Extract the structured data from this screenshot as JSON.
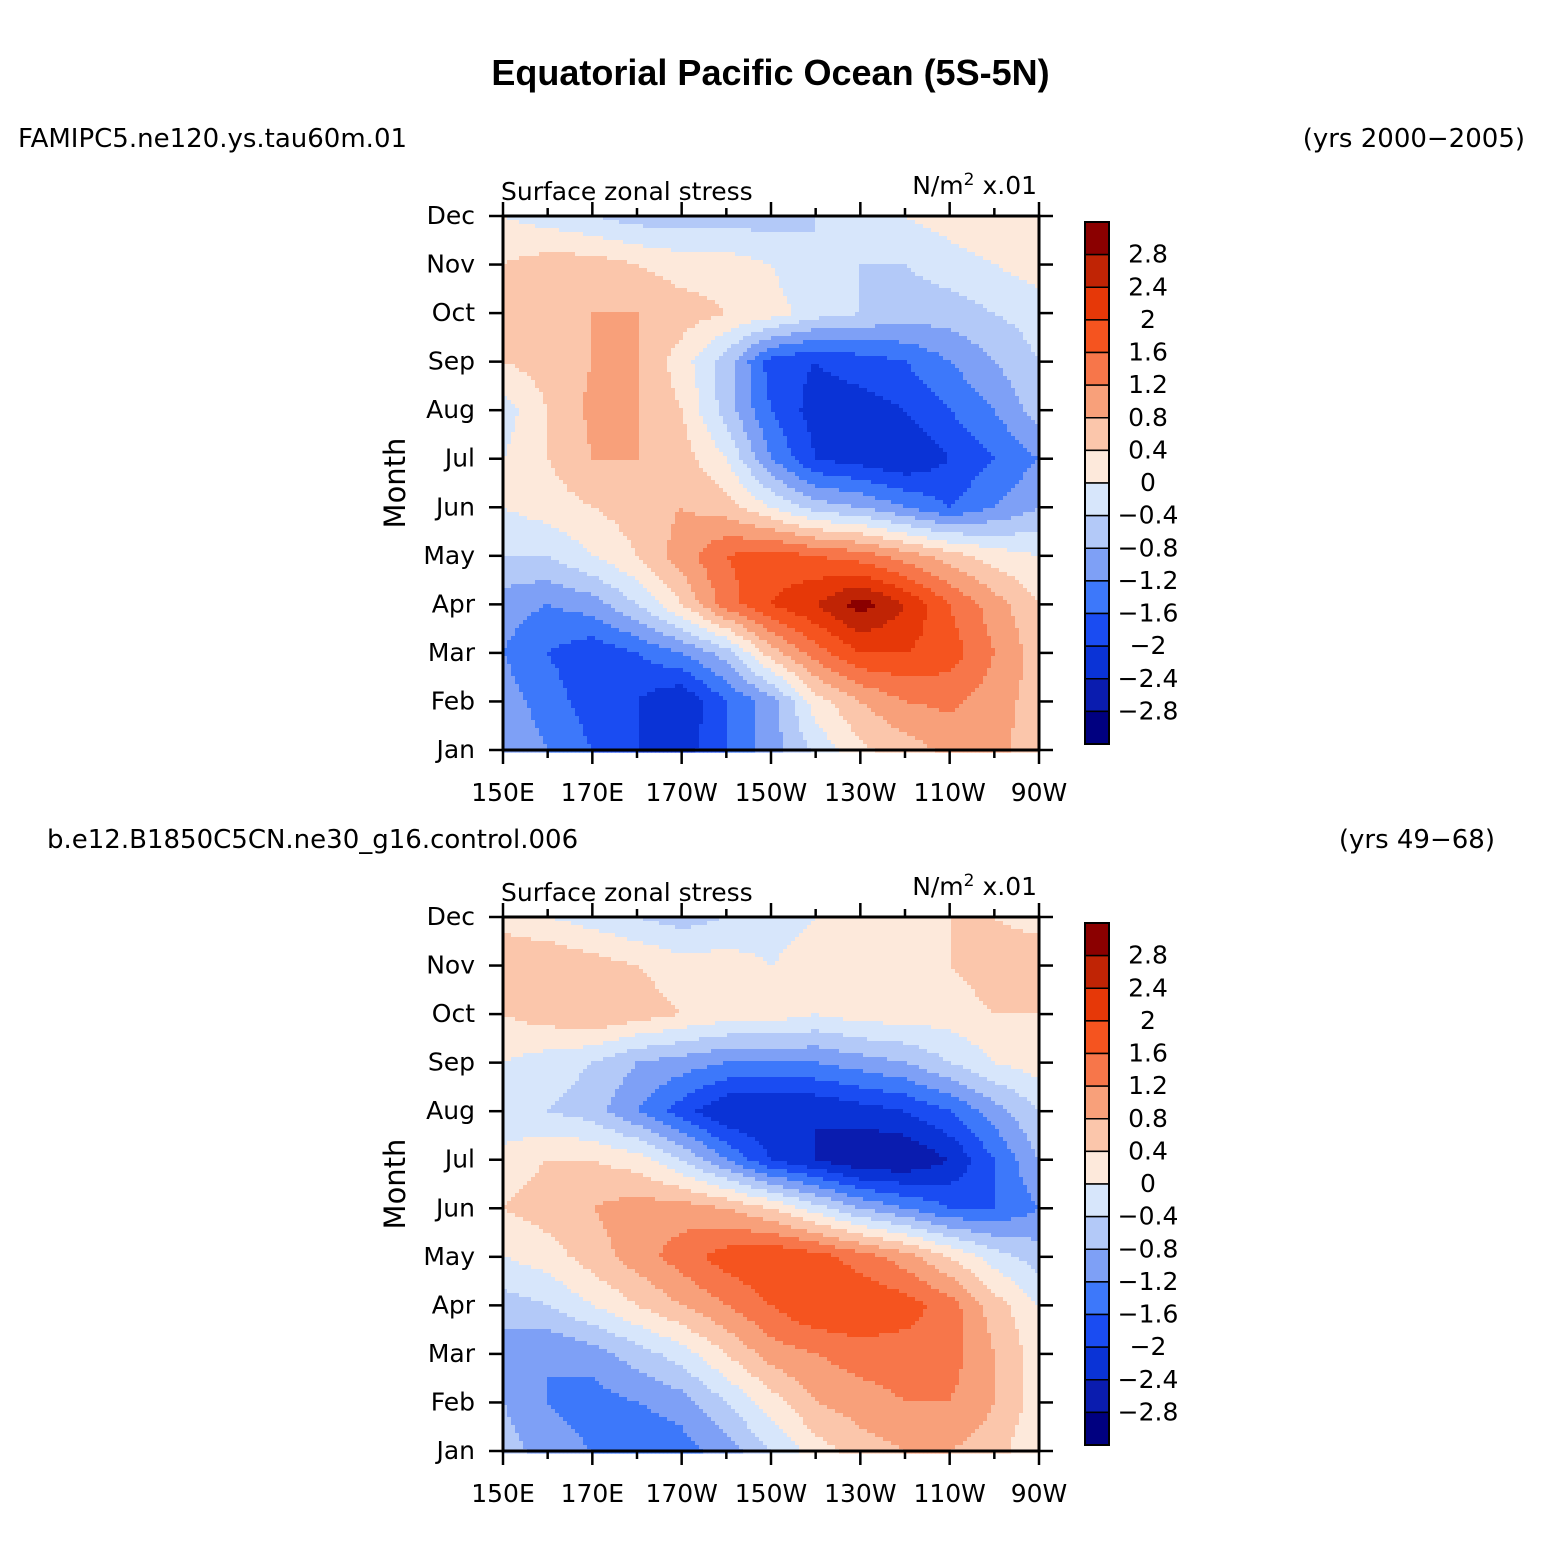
{
  "title": "Equatorial Pacific Ocean (5S-5N)",
  "panels": [
    {
      "case": "FAMIPC5.ne120.ys.tau60m.01",
      "years": "(yrs 2000−2005)",
      "left_label": "Surface zonal stress",
      "units_main": "N/m",
      "units_sup": "2",
      "units_scale": "x.01"
    },
    {
      "case": "b.e12.B1850C5CN.ne30_g16.control.006",
      "years": "(yrs 49−68)",
      "left_label": "Surface zonal stress",
      "units_main": "N/m",
      "units_sup": "2",
      "units_scale": "x.01"
    }
  ],
  "colors": {
    "c_m3.2": "#000080",
    "c_m2.8": "#0a1caf",
    "c_m2.4": "#0a33d6",
    "c_m2.0": "#1a4cf2",
    "c_m1.6": "#3d78fa",
    "c_m1.2": "#7ea0f6",
    "c_m0.8": "#b3c9f8",
    "c_m0.4": "#d7e6fb",
    "c_p0.0": "#fde9db",
    "c_p0.4": "#fbc6ab",
    "c_p0.8": "#f8a07a",
    "c_p1.2": "#f7764a",
    "c_p1.6": "#f5541f",
    "c_p2.0": "#e63808",
    "c_p2.4": "#c02405",
    "c_p2.8": "#8b0000"
  },
  "chart_data": [
    {
      "type": "heatmap",
      "plot_type": "filled-contour",
      "title": "Surface zonal stress",
      "units": "N/m² x.01",
      "xlabel": "",
      "ylabel": "Month",
      "x_tick_labels": [
        "150E",
        "170E",
        "170W",
        "150W",
        "130W",
        "110W",
        "90W"
      ],
      "x_lon_east": [
        150,
        170,
        190,
        210,
        230,
        250,
        270
      ],
      "xlim": [
        150,
        270
      ],
      "y_tick_labels": [
        "Jan",
        "Feb",
        "Mar",
        "Apr",
        "May",
        "Jun",
        "Jul",
        "Aug",
        "Sep",
        "Oct",
        "Nov",
        "Dec"
      ],
      "colorbar_labels": [
        "2.8",
        "2.4",
        "2",
        "1.6",
        "1.2",
        "0.8",
        "0.4",
        "0",
        "−0.4",
        "−0.8",
        "−1.2",
        "−1.6",
        "−2",
        "−2.4",
        "−2.8"
      ],
      "contour_levels": [
        -2.8,
        -2.4,
        -2.0,
        -1.6,
        -1.2,
        -0.8,
        -0.4,
        0,
        0.4,
        0.8,
        1.2,
        1.6,
        2.0,
        2.4,
        2.8
      ],
      "grid": {
        "lon_east": [
          150,
          160,
          170,
          180,
          190,
          200,
          210,
          220,
          230,
          240,
          250,
          260,
          270
        ],
        "month": [
          1,
          2,
          3,
          4,
          5,
          6,
          7,
          8,
          9,
          10,
          11,
          12
        ],
        "values": [
          [
            -0.8,
            -1.2,
            -1.6,
            -2.0,
            -2.2,
            -1.6,
            -1.0,
            -0.3,
            0.3,
            0.6,
            0.9,
            0.9,
            0.6
          ],
          [
            -1.0,
            -1.4,
            -1.8,
            -2.0,
            -2.4,
            -1.6,
            -1.0,
            0.2,
            0.8,
            1.2,
            1.3,
            1.0,
            0.6
          ],
          [
            -1.2,
            -1.6,
            -1.9,
            -1.6,
            -1.2,
            -0.6,
            0.6,
            1.4,
            2.0,
            2.0,
            1.8,
            1.2,
            0.6
          ],
          [
            -1.0,
            -1.2,
            -1.0,
            -0.4,
            0.4,
            1.4,
            2.0,
            2.4,
            3.0,
            2.4,
            1.6,
            1.0,
            0.4
          ],
          [
            -0.4,
            -0.4,
            0.0,
            0.4,
            1.0,
            1.6,
            1.8,
            1.6,
            1.4,
            1.0,
            0.6,
            0.2,
            0.0
          ],
          [
            0.0,
            0.2,
            0.4,
            0.6,
            0.8,
            0.6,
            0.0,
            -0.6,
            -0.8,
            -1.2,
            -1.6,
            -1.2,
            -0.8
          ],
          [
            0.0,
            0.4,
            0.8,
            0.8,
            0.6,
            0.0,
            -1.2,
            -2.0,
            -2.2,
            -2.4,
            -2.0,
            -1.6,
            -1.2
          ],
          [
            -0.2,
            0.4,
            0.9,
            0.8,
            0.4,
            -0.6,
            -1.6,
            -2.2,
            -2.2,
            -2.0,
            -1.6,
            -1.2,
            -0.6
          ],
          [
            0.4,
            0.6,
            0.8,
            0.8,
            0.2,
            -0.6,
            -1.8,
            -2.0,
            -1.8,
            -1.6,
            -1.2,
            -0.8,
            -0.4
          ],
          [
            0.4,
            0.6,
            0.8,
            0.8,
            0.6,
            0.4,
            0.2,
            -0.2,
            -0.4,
            -0.6,
            -0.6,
            -0.4,
            -0.2
          ],
          [
            0.4,
            0.6,
            0.6,
            0.4,
            0.2,
            0.2,
            0.0,
            -0.4,
            -0.4,
            -0.4,
            -0.2,
            0.0,
            0.2
          ],
          [
            0.0,
            -0.2,
            -0.4,
            -0.6,
            -0.6,
            -0.6,
            -0.6,
            -0.4,
            -0.2,
            0.0,
            0.2,
            0.4,
            0.4
          ]
        ]
      }
    },
    {
      "type": "heatmap",
      "plot_type": "filled-contour",
      "title": "Surface zonal stress",
      "units": "N/m² x.01",
      "xlabel": "",
      "ylabel": "Month",
      "x_tick_labels": [
        "150E",
        "170E",
        "170W",
        "150W",
        "130W",
        "110W",
        "90W"
      ],
      "x_lon_east": [
        150,
        170,
        190,
        210,
        230,
        250,
        270
      ],
      "xlim": [
        150,
        270
      ],
      "y_tick_labels": [
        "Jan",
        "Feb",
        "Mar",
        "Apr",
        "May",
        "Jun",
        "Jul",
        "Aug",
        "Sep",
        "Oct",
        "Nov",
        "Dec"
      ],
      "colorbar_labels": [
        "2.8",
        "2.4",
        "2",
        "1.6",
        "1.2",
        "0.8",
        "0.4",
        "0",
        "−0.4",
        "−0.8",
        "−1.2",
        "−1.6",
        "−2",
        "−2.4",
        "−2.8"
      ],
      "contour_levels": [
        -2.8,
        -2.4,
        -2.0,
        -1.6,
        -1.2,
        -0.8,
        -0.4,
        0,
        0.4,
        0.8,
        1.2,
        1.6,
        2.0,
        2.4,
        2.8
      ],
      "grid": {
        "lon_east": [
          150,
          160,
          170,
          180,
          190,
          200,
          210,
          220,
          230,
          240,
          250,
          260,
          270
        ],
        "month": [
          1,
          2,
          3,
          4,
          5,
          6,
          7,
          8,
          9,
          10,
          11,
          12
        ],
        "values": [
          [
            -0.6,
            -1.0,
            -1.2,
            -1.6,
            -1.4,
            -1.0,
            -0.4,
            0.2,
            0.6,
            0.8,
            0.8,
            0.6,
            0.0
          ],
          [
            -0.8,
            -1.2,
            -1.4,
            -1.2,
            -1.0,
            -0.4,
            0.2,
            0.8,
            1.0,
            1.2,
            1.2,
            0.8,
            0.2
          ],
          [
            -1.0,
            -1.2,
            -1.0,
            -0.6,
            -0.2,
            0.4,
            1.0,
            1.2,
            1.4,
            1.4,
            1.4,
            0.8,
            0.2
          ],
          [
            -0.6,
            -0.4,
            0.0,
            0.4,
            0.8,
            1.2,
            1.6,
            2.0,
            2.0,
            1.8,
            1.4,
            0.6,
            0.0
          ],
          [
            0.0,
            0.2,
            0.6,
            1.0,
            1.4,
            1.8,
            2.0,
            1.8,
            1.4,
            1.0,
            0.4,
            -0.2,
            -0.6
          ],
          [
            0.4,
            0.6,
            0.8,
            1.0,
            1.0,
            0.8,
            0.4,
            -0.2,
            -0.8,
            -1.2,
            -1.6,
            -1.6,
            -1.2
          ],
          [
            0.2,
            0.4,
            0.4,
            0.2,
            -0.4,
            -1.2,
            -2.0,
            -2.4,
            -2.8,
            -2.8,
            -2.4,
            -1.6,
            -0.8
          ],
          [
            -0.4,
            -0.4,
            -0.6,
            -1.2,
            -1.8,
            -2.4,
            -2.4,
            -2.4,
            -2.2,
            -2.0,
            -1.6,
            -1.0,
            -0.4
          ],
          [
            0.0,
            -0.2,
            -0.4,
            -0.8,
            -1.0,
            -1.2,
            -1.2,
            -1.2,
            -1.0,
            -0.8,
            -0.4,
            0.0,
            0.2
          ],
          [
            0.4,
            0.6,
            0.8,
            0.6,
            0.4,
            0.2,
            0.2,
            0.0,
            0.2,
            0.2,
            0.2,
            0.4,
            0.4
          ],
          [
            0.8,
            0.8,
            0.6,
            0.4,
            0.2,
            0.2,
            0.0,
            0.2,
            0.4,
            0.2,
            0.4,
            0.6,
            0.8
          ],
          [
            0.2,
            0.0,
            -0.2,
            -0.4,
            -0.6,
            -0.4,
            -0.2,
            0.0,
            0.0,
            0.2,
            0.4,
            0.4,
            0.2
          ]
        ]
      }
    }
  ]
}
